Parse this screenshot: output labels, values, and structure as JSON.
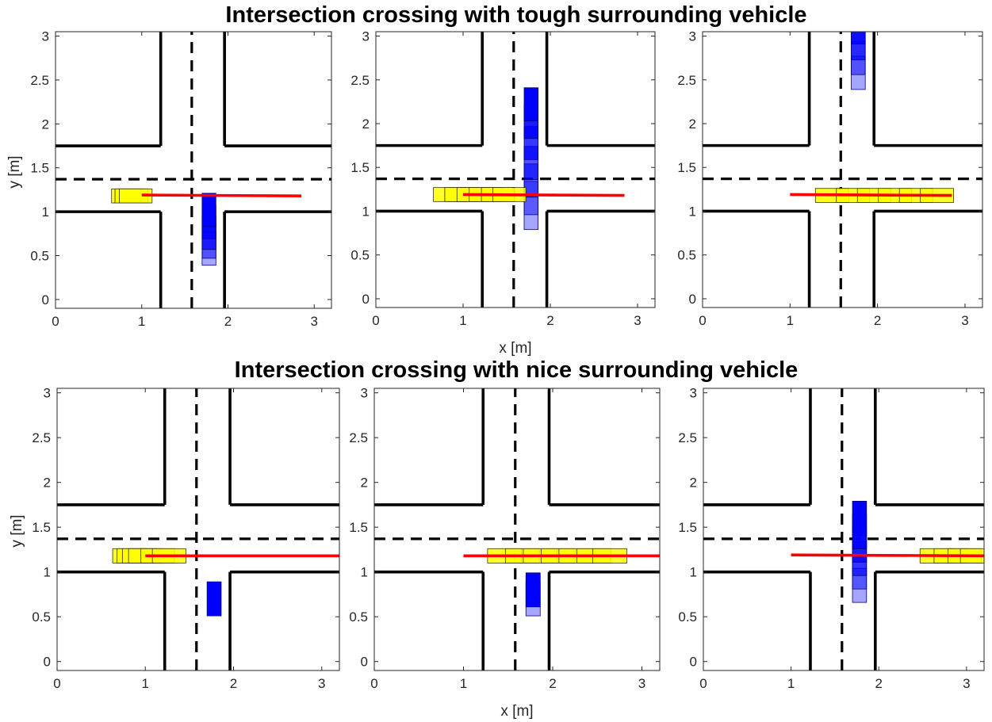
{
  "colors": {
    "ego_vehicle": "#ffff00",
    "other_vehicle": "#0000ff",
    "reference_path": "#ff0000",
    "road_lines": "#000000"
  },
  "rows": [
    {
      "title": "Intersection crossing with tough surrounding vehicle"
    },
    {
      "title": "Intersection crossing with nice surrounding vehicle"
    }
  ],
  "labels": {
    "ylabel": "y [m]",
    "xlabel": "x [m]"
  },
  "chart_data": [
    {
      "type": "scatter",
      "row": 0,
      "xlim": [
        0,
        3.2
      ],
      "ylim": [
        -0.1,
        3.05
      ],
      "xticks": [
        "0",
        "1",
        "2",
        "3"
      ],
      "yticks": [
        "0",
        "0.5",
        "1",
        "1.5",
        "2",
        "2.5",
        "3"
      ],
      "ego_positions_x": [
        0.84,
        0.88,
        0.93
      ],
      "ego_y_center": 1.18,
      "other_positions_y": [
        0.58,
        0.66,
        0.76,
        0.88,
        1.02
      ],
      "other_x_center": 1.78,
      "reference_line": {
        "x": [
          1.0,
          2.85
        ],
        "y": [
          1.19,
          1.18
        ]
      }
    },
    {
      "type": "scatter",
      "row": 0,
      "xlim": [
        0,
        3.2
      ],
      "ylim": [
        -0.1,
        3.05
      ],
      "xticks": [
        "0",
        "1",
        "2",
        "3"
      ],
      "yticks": [
        "0",
        "0.5",
        "1",
        "1.5",
        "2",
        "2.5",
        "3"
      ],
      "ego_positions_x": [
        0.85,
        0.98,
        1.12,
        1.26,
        1.4,
        1.53
      ],
      "ego_y_center": 1.19,
      "other_positions_y": [
        0.98,
        1.15,
        1.35,
        1.55,
        1.78,
        2.02,
        2.22
      ],
      "other_x_center": 1.78,
      "reference_line": {
        "x": [
          1.0,
          2.85
        ],
        "y": [
          1.19,
          1.18
        ]
      }
    },
    {
      "type": "scatter",
      "row": 0,
      "xlim": [
        0,
        3.2
      ],
      "ylim": [
        -0.1,
        3.05
      ],
      "xticks": [
        "0",
        "1",
        "2",
        "3"
      ],
      "yticks": [
        "0",
        "0.5",
        "1",
        "1.5",
        "2",
        "2.5",
        "3"
      ],
      "ego_positions_x": [
        1.48,
        1.72,
        1.96,
        2.2,
        2.44,
        2.68
      ],
      "ego_y_center": 1.18,
      "other_positions_y": [
        2.58,
        2.75,
        2.92,
        3.1,
        3.25
      ],
      "other_x_center": 1.78,
      "reference_line": {
        "x": [
          1.0,
          2.85
        ],
        "y": [
          1.19,
          1.18
        ]
      }
    },
    {
      "type": "scatter",
      "row": 1,
      "xlim": [
        0,
        3.2
      ],
      "ylim": [
        -0.1,
        3.05
      ],
      "xticks": [
        "0",
        "1",
        "2",
        "3"
      ],
      "yticks": [
        "0",
        "0.5",
        "1",
        "1.5",
        "2",
        "2.5",
        "3"
      ],
      "ego_positions_x": [
        0.82,
        0.87,
        0.93,
        1.0,
        1.14,
        1.27
      ],
      "ego_y_center": 1.18,
      "other_positions_y": [
        0.7
      ],
      "other_x_center": 1.78,
      "reference_line": {
        "x": [
          1.0,
          3.2
        ],
        "y": [
          1.18,
          1.18
        ]
      }
    },
    {
      "type": "scatter",
      "row": 1,
      "xlim": [
        0,
        3.2
      ],
      "ylim": [
        -0.1,
        3.05
      ],
      "xticks": [
        "0",
        "1",
        "2",
        "3"
      ],
      "yticks": [
        "0",
        "0.5",
        "1",
        "1.5",
        "2",
        "2.5",
        "3"
      ],
      "ego_positions_x": [
        1.46,
        1.66,
        1.86,
        2.06,
        2.26,
        2.46,
        2.64
      ],
      "ego_y_center": 1.18,
      "other_positions_y": [
        0.7,
        0.8
      ],
      "other_x_center": 1.78,
      "reference_line": {
        "x": [
          1.0,
          3.2
        ],
        "y": [
          1.18,
          1.18
        ]
      }
    },
    {
      "type": "scatter",
      "row": 1,
      "xlim": [
        0,
        3.2
      ],
      "ylim": [
        -0.1,
        3.05
      ],
      "xticks": [
        "0",
        "1",
        "2",
        "3"
      ],
      "yticks": [
        "0",
        "0.5",
        "1",
        "1.5",
        "2",
        "2.5",
        "3"
      ],
      "ego_positions_x": [
        2.66,
        2.82,
        2.98,
        3.12
      ],
      "ego_y_center": 1.18,
      "other_positions_y": [
        0.85,
        1.0,
        1.15,
        1.3,
        1.45,
        1.6
      ],
      "other_x_center": 1.78,
      "reference_line": {
        "x": [
          1.0,
          3.2
        ],
        "y": [
          1.19,
          1.18
        ]
      }
    }
  ]
}
